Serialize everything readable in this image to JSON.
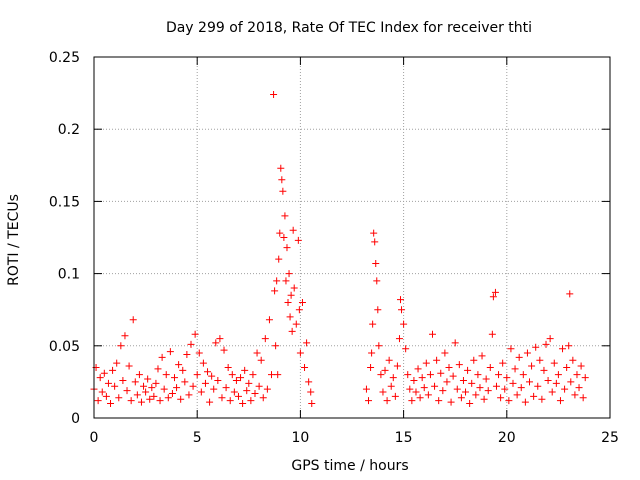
{
  "chart_data": {
    "type": "scatter",
    "title": "Day 299 of 2018, Rate Of TEC Index for receiver thti",
    "xlabel": "GPS time / hours",
    "ylabel": "ROTI / TECUs",
    "xlim": [
      0,
      25
    ],
    "ylim": [
      0,
      0.25
    ],
    "xticks": [
      0,
      5,
      10,
      15,
      20,
      25
    ],
    "xtick_labels": [
      "0",
      "5",
      "10",
      "15",
      "20",
      "25"
    ],
    "yticks": [
      0,
      0.05,
      0.1,
      0.15,
      0.2,
      0.25
    ],
    "ytick_labels": [
      "0",
      "0.05",
      "0.1",
      "0.15",
      "0.2",
      "0.25"
    ],
    "grid": true,
    "marker": "+",
    "color": "#ff0000",
    "series": [
      {
        "name": "ROTI",
        "points": [
          [
            0.0,
            0.02
          ],
          [
            0.1,
            0.035
          ],
          [
            0.2,
            0.012
          ],
          [
            0.3,
            0.028
          ],
          [
            0.4,
            0.018
          ],
          [
            0.5,
            0.031
          ],
          [
            0.6,
            0.015
          ],
          [
            0.7,
            0.024
          ],
          [
            0.8,
            0.01
          ],
          [
            0.9,
            0.033
          ],
          [
            1.0,
            0.022
          ],
          [
            1.1,
            0.038
          ],
          [
            1.2,
            0.014
          ],
          [
            1.3,
            0.05
          ],
          [
            1.4,
            0.026
          ],
          [
            1.5,
            0.057
          ],
          [
            1.6,
            0.019
          ],
          [
            1.7,
            0.036
          ],
          [
            1.8,
            0.012
          ],
          [
            1.9,
            0.068
          ],
          [
            2.0,
            0.025
          ],
          [
            2.1,
            0.016
          ],
          [
            2.2,
            0.03
          ],
          [
            2.3,
            0.011
          ],
          [
            2.4,
            0.022
          ],
          [
            2.5,
            0.018
          ],
          [
            2.6,
            0.027
          ],
          [
            2.7,
            0.013
          ],
          [
            2.8,
            0.021
          ],
          [
            2.9,
            0.015
          ],
          [
            3.0,
            0.024
          ],
          [
            3.1,
            0.034
          ],
          [
            3.2,
            0.012
          ],
          [
            3.3,
            0.042
          ],
          [
            3.4,
            0.02
          ],
          [
            3.5,
            0.03
          ],
          [
            3.6,
            0.014
          ],
          [
            3.7,
            0.046
          ],
          [
            3.8,
            0.017
          ],
          [
            3.9,
            0.028
          ],
          [
            4.0,
            0.021
          ],
          [
            4.1,
            0.037
          ],
          [
            4.2,
            0.013
          ],
          [
            4.3,
            0.033
          ],
          [
            4.4,
            0.025
          ],
          [
            4.5,
            0.044
          ],
          [
            4.6,
            0.016
          ],
          [
            4.7,
            0.051
          ],
          [
            4.8,
            0.022
          ],
          [
            4.9,
            0.058
          ],
          [
            5.0,
            0.03
          ],
          [
            5.1,
            0.045
          ],
          [
            5.2,
            0.018
          ],
          [
            5.3,
            0.038
          ],
          [
            5.4,
            0.024
          ],
          [
            5.5,
            0.032
          ],
          [
            5.6,
            0.011
          ],
          [
            5.7,
            0.029
          ],
          [
            5.8,
            0.02
          ],
          [
            5.9,
            0.052
          ],
          [
            6.0,
            0.026
          ],
          [
            6.1,
            0.055
          ],
          [
            6.2,
            0.014
          ],
          [
            6.3,
            0.047
          ],
          [
            6.4,
            0.021
          ],
          [
            6.5,
            0.035
          ],
          [
            6.6,
            0.012
          ],
          [
            6.7,
            0.03
          ],
          [
            6.8,
            0.018
          ],
          [
            6.9,
            0.026
          ],
          [
            7.0,
            0.015
          ],
          [
            7.1,
            0.028
          ],
          [
            7.2,
            0.01
          ],
          [
            7.3,
            0.033
          ],
          [
            7.4,
            0.019
          ],
          [
            7.5,
            0.024
          ],
          [
            7.6,
            0.012
          ],
          [
            7.7,
            0.03
          ],
          [
            7.8,
            0.017
          ],
          [
            7.9,
            0.045
          ],
          [
            8.0,
            0.022
          ],
          [
            8.1,
            0.04
          ],
          [
            8.2,
            0.014
          ],
          [
            8.3,
            0.055
          ],
          [
            8.4,
            0.02
          ],
          [
            8.5,
            0.068
          ],
          [
            8.6,
            0.03
          ],
          [
            8.7,
            0.224
          ],
          [
            8.75,
            0.088
          ],
          [
            8.8,
            0.05
          ],
          [
            8.85,
            0.095
          ],
          [
            8.9,
            0.03
          ],
          [
            8.95,
            0.11
          ],
          [
            9.0,
            0.128
          ],
          [
            9.05,
            0.173
          ],
          [
            9.1,
            0.165
          ],
          [
            9.15,
            0.157
          ],
          [
            9.2,
            0.125
          ],
          [
            9.25,
            0.14
          ],
          [
            9.3,
            0.095
          ],
          [
            9.35,
            0.118
          ],
          [
            9.4,
            0.08
          ],
          [
            9.45,
            0.1
          ],
          [
            9.5,
            0.07
          ],
          [
            9.55,
            0.085
          ],
          [
            9.6,
            0.06
          ],
          [
            9.65,
            0.13
          ],
          [
            9.7,
            0.09
          ],
          [
            9.8,
            0.065
          ],
          [
            9.9,
            0.123
          ],
          [
            9.95,
            0.075
          ],
          [
            10.0,
            0.045
          ],
          [
            10.1,
            0.08
          ],
          [
            10.2,
            0.035
          ],
          [
            10.3,
            0.052
          ],
          [
            10.4,
            0.025
          ],
          [
            10.5,
            0.018
          ],
          [
            10.55,
            0.01
          ],
          [
            13.2,
            0.02
          ],
          [
            13.3,
            0.012
          ],
          [
            13.4,
            0.035
          ],
          [
            13.45,
            0.045
          ],
          [
            13.5,
            0.065
          ],
          [
            13.55,
            0.128
          ],
          [
            13.6,
            0.122
          ],
          [
            13.65,
            0.107
          ],
          [
            13.7,
            0.095
          ],
          [
            13.75,
            0.075
          ],
          [
            13.8,
            0.05
          ],
          [
            13.9,
            0.03
          ],
          [
            14.0,
            0.018
          ],
          [
            14.1,
            0.033
          ],
          [
            14.2,
            0.012
          ],
          [
            14.3,
            0.04
          ],
          [
            14.4,
            0.022
          ],
          [
            14.5,
            0.028
          ],
          [
            14.6,
            0.015
          ],
          [
            14.7,
            0.036
          ],
          [
            14.8,
            0.055
          ],
          [
            14.85,
            0.082
          ],
          [
            14.9,
            0.075
          ],
          [
            15.0,
            0.065
          ],
          [
            15.1,
            0.048
          ],
          [
            15.2,
            0.03
          ],
          [
            15.3,
            0.02
          ],
          [
            15.4,
            0.012
          ],
          [
            15.5,
            0.026
          ],
          [
            15.6,
            0.018
          ],
          [
            15.7,
            0.034
          ],
          [
            15.8,
            0.014
          ],
          [
            15.9,
            0.028
          ],
          [
            16.0,
            0.021
          ],
          [
            16.1,
            0.038
          ],
          [
            16.2,
            0.016
          ],
          [
            16.3,
            0.03
          ],
          [
            16.4,
            0.058
          ],
          [
            16.5,
            0.022
          ],
          [
            16.6,
            0.04
          ],
          [
            16.7,
            0.012
          ],
          [
            16.8,
            0.031
          ],
          [
            16.9,
            0.019
          ],
          [
            17.0,
            0.045
          ],
          [
            17.1,
            0.025
          ],
          [
            17.2,
            0.035
          ],
          [
            17.3,
            0.011
          ],
          [
            17.4,
            0.029
          ],
          [
            17.5,
            0.052
          ],
          [
            17.6,
            0.02
          ],
          [
            17.7,
            0.037
          ],
          [
            17.8,
            0.014
          ],
          [
            17.9,
            0.026
          ],
          [
            18.0,
            0.018
          ],
          [
            18.1,
            0.033
          ],
          [
            18.2,
            0.01
          ],
          [
            18.3,
            0.024
          ],
          [
            18.4,
            0.04
          ],
          [
            18.5,
            0.016
          ],
          [
            18.6,
            0.03
          ],
          [
            18.7,
            0.021
          ],
          [
            18.8,
            0.043
          ],
          [
            18.9,
            0.013
          ],
          [
            19.0,
            0.027
          ],
          [
            19.1,
            0.019
          ],
          [
            19.2,
            0.035
          ],
          [
            19.3,
            0.058
          ],
          [
            19.35,
            0.084
          ],
          [
            19.45,
            0.087
          ],
          [
            19.5,
            0.022
          ],
          [
            19.6,
            0.03
          ],
          [
            19.7,
            0.014
          ],
          [
            19.8,
            0.038
          ],
          [
            19.9,
            0.02
          ],
          [
            20.0,
            0.028
          ],
          [
            20.1,
            0.012
          ],
          [
            20.2,
            0.048
          ],
          [
            20.3,
            0.024
          ],
          [
            20.4,
            0.034
          ],
          [
            20.5,
            0.016
          ],
          [
            20.6,
            0.042
          ],
          [
            20.7,
            0.021
          ],
          [
            20.8,
            0.03
          ],
          [
            20.9,
            0.011
          ],
          [
            21.0,
            0.045
          ],
          [
            21.1,
            0.025
          ],
          [
            21.2,
            0.036
          ],
          [
            21.3,
            0.015
          ],
          [
            21.4,
            0.049
          ],
          [
            21.5,
            0.022
          ],
          [
            21.6,
            0.04
          ],
          [
            21.7,
            0.013
          ],
          [
            21.8,
            0.033
          ],
          [
            21.9,
            0.051
          ],
          [
            22.0,
            0.026
          ],
          [
            22.1,
            0.055
          ],
          [
            22.2,
            0.018
          ],
          [
            22.3,
            0.038
          ],
          [
            22.4,
            0.024
          ],
          [
            22.5,
            0.03
          ],
          [
            22.6,
            0.012
          ],
          [
            22.7,
            0.048
          ],
          [
            22.8,
            0.02
          ],
          [
            22.9,
            0.035
          ],
          [
            23.0,
            0.05
          ],
          [
            23.05,
            0.086
          ],
          [
            23.1,
            0.025
          ],
          [
            23.2,
            0.04
          ],
          [
            23.3,
            0.016
          ],
          [
            23.4,
            0.03
          ],
          [
            23.5,
            0.021
          ],
          [
            23.6,
            0.036
          ],
          [
            23.7,
            0.014
          ],
          [
            23.8,
            0.028
          ]
        ]
      }
    ]
  }
}
